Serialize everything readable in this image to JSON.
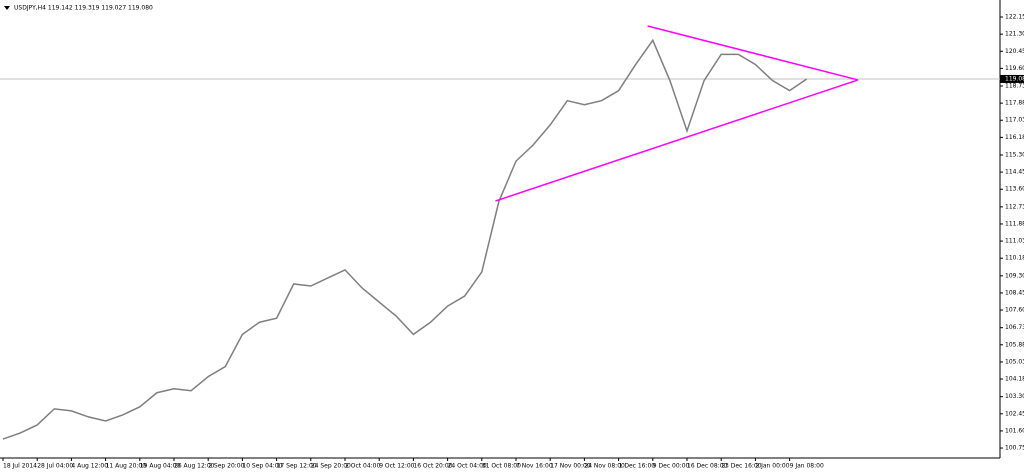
{
  "chart_data": {
    "type": "line",
    "title": "USDJPY,H4  119.142 119.319 119.027 119.080",
    "categories": [
      "18 Jul 2014",
      null,
      "28 Jul 04:00",
      null,
      "4 Aug 12:00",
      null,
      "11 Aug 20:00",
      null,
      "19 Aug 04:00",
      null,
      "26 Aug 12:00",
      null,
      "2 Sep 20:00",
      null,
      "10 Sep 04:00",
      null,
      "17 Sep 12:00",
      null,
      "24 Sep 20:00",
      null,
      "2 Oct 04:00",
      null,
      "9 Oct 12:00",
      null,
      "16 Oct 20:00",
      null,
      "24 Oct 04:00",
      null,
      "31 Oct 08:00",
      null,
      "7 Nov 16:00",
      null,
      "17 Nov 00:00",
      null,
      "24 Nov 08:00",
      null,
      "1 Dec 16:00",
      null,
      "9 Dec 00:00",
      null,
      "16 Dec 08:00",
      null,
      "23 Dec 16:00",
      null,
      "2 Jan 00:00",
      null,
      "9 Jan 08:00",
      null
    ],
    "series": [
      {
        "name": "USDJPY,H4",
        "color": "#7f7f7f",
        "values": [
          101.2,
          101.5,
          101.9,
          102.7,
          102.6,
          102.3,
          102.1,
          102.4,
          102.8,
          103.5,
          103.7,
          103.6,
          104.3,
          104.8,
          106.4,
          107.0,
          107.2,
          108.9,
          108.8,
          109.2,
          109.6,
          108.7,
          108.0,
          107.3,
          106.4,
          107.0,
          107.8,
          108.3,
          109.5,
          113.0,
          115.0,
          115.8,
          116.8,
          118.0,
          117.8,
          118.0,
          118.5,
          119.8,
          121.0,
          119.0,
          116.5,
          119.0,
          120.3,
          120.3,
          119.8,
          119.0,
          118.5,
          119.08
        ]
      }
    ],
    "ylim": [
      100.26,
      123.0
    ],
    "yticks": [
      122.155,
      121.305,
      120.455,
      119.605,
      {
        "value": 118.73,
        "label": "118.730"
      },
      {
        "value": 117.88,
        "label": "117.880"
      },
      {
        "value": 117.03,
        "label": "117.030"
      },
      {
        "value": 116.18,
        "label": "116.180"
      },
      115.305,
      114.455,
      113.605,
      {
        "value": 112.73,
        "label": "112.730"
      },
      {
        "value": 111.88,
        "label": "111.880"
      },
      {
        "value": 111.03,
        "label": "111.030"
      },
      {
        "value": 110.18,
        "label": "110.180"
      },
      109.305,
      108.455,
      107.605,
      {
        "value": 106.73,
        "label": "106.730"
      },
      {
        "value": 105.88,
        "label": "105.880"
      },
      {
        "value": 105.03,
        "label": "105.030"
      },
      {
        "value": 104.18,
        "label": "104.180"
      },
      103.305,
      102.455,
      101.605,
      100.755
    ],
    "price_line": {
      "value": 119.08,
      "label": "119.080"
    },
    "trendlines": [
      {
        "color": "#ff00ff",
        "x": [
          37.7,
          50
        ],
        "y": [
          121.71,
          119.03
        ]
      },
      {
        "color": "#ff00ff",
        "x": [
          28.8,
          50
        ],
        "y": [
          113.02,
          119.03
        ]
      }
    ]
  }
}
